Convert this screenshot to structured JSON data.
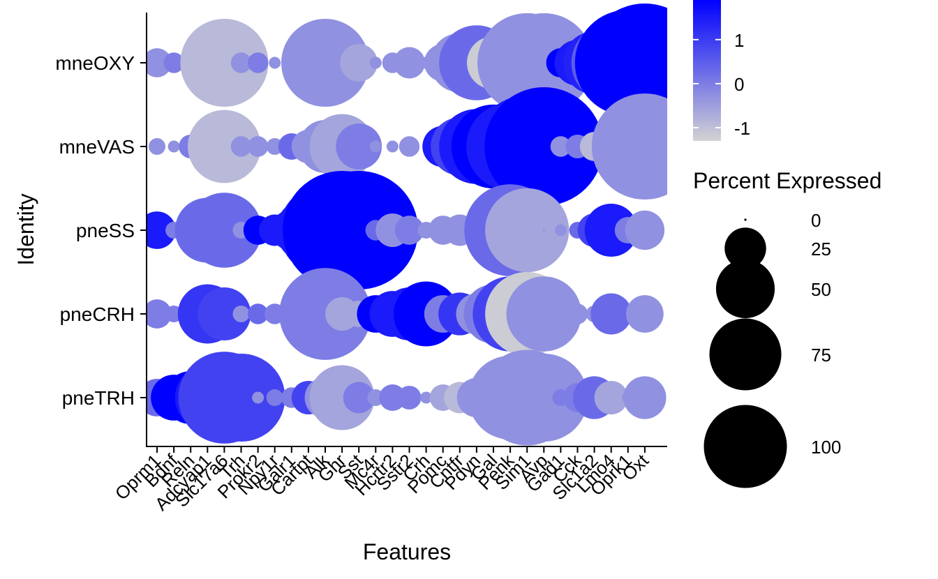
{
  "chart_data": {
    "type": "dotplot",
    "xlabel": "Features",
    "ylabel": "Identity",
    "features": [
      "Oprm1",
      "Bdnf",
      "Reln",
      "Adcyap1",
      "Slc17a6",
      "Trh",
      "Prokr2",
      "Npy1r",
      "Galr1",
      "Cartpt",
      "Alk",
      "Ghr",
      "Sst",
      "Mc4r",
      "Hcrtr2",
      "Sstr2",
      "Crh",
      "Pomc",
      "Cntfr",
      "Pdyn",
      "Gal",
      "Penk",
      "Sim1",
      "Avp",
      "Gad1",
      "Cck",
      "Slc1a2",
      "Lmo4",
      "Oprk1",
      "Oxt"
    ],
    "identities": [
      "mneOXY",
      "mneVAS",
      "pneSS",
      "pneCRH",
      "pneTRH"
    ],
    "color_legend": {
      "title": "",
      "min_color": "#d3d3d3",
      "max_color": "#0000ff",
      "range": [
        -1.3,
        1.9
      ],
      "ticks": [
        -1,
        0,
        1
      ]
    },
    "size_legend": {
      "title": "Percent Expressed",
      "values": [
        0,
        25,
        50,
        75,
        100
      ]
    },
    "grid": false,
    "rows": {
      "mneOXY": {
        "pct": [
          6,
          3,
          2,
          0,
          55,
          3,
          3,
          1,
          1,
          2,
          55,
          0,
          10,
          1,
          3,
          7,
          1,
          10,
          25,
          40,
          20,
          15,
          70,
          70,
          6,
          15,
          28,
          45,
          80,
          100
        ],
        "avg": [
          -0.3,
          0,
          0,
          -0.9,
          -0.9,
          -0.3,
          0,
          -0.3,
          -0.3,
          -0.3,
          -0.3,
          0,
          -0.6,
          -0.3,
          -0.3,
          -0.3,
          -0.3,
          -0.3,
          -0.3,
          0.3,
          -1.2,
          -0.3,
          -0.3,
          -0.3,
          1.9,
          1.5,
          1.4,
          0.5,
          1.9,
          1.9
        ]
      },
      "mneVAS": {
        "pct": [
          2,
          1,
          4,
          0,
          38,
          3,
          3,
          2,
          5,
          8,
          20,
          30,
          15,
          1,
          1,
          3,
          0,
          12,
          24,
          40,
          50,
          55,
          75,
          100,
          3,
          4,
          6,
          6,
          10,
          80
        ],
        "avg": [
          -0.3,
          -0.3,
          0,
          -0.9,
          -0.9,
          -0.3,
          -0.3,
          -0.3,
          0.3,
          -0.3,
          -0.3,
          -0.6,
          0,
          -0.3,
          -0.3,
          -0.3,
          -0.3,
          1.5,
          0.9,
          1.5,
          1.9,
          1.5,
          1.5,
          1.9,
          -0.3,
          0,
          -0.9,
          -0.9,
          -0.9,
          -0.3
        ]
      },
      "pneSS": {
        "pct": [
          10,
          2,
          1,
          30,
          40,
          2,
          6,
          7,
          12,
          30,
          60,
          100,
          100,
          3,
          8,
          6,
          2,
          6,
          7,
          8,
          20,
          60,
          50,
          0,
          1,
          2,
          8,
          20,
          5,
          11
        ],
        "avg": [
          1.5,
          0,
          0,
          0.3,
          0.3,
          -0.3,
          1.9,
          1.5,
          1.5,
          1.5,
          1.5,
          1.9,
          1.9,
          0.3,
          -0.3,
          0,
          -0.3,
          -0.3,
          -0.3,
          -0.3,
          -0.3,
          0.3,
          -0.6,
          -0.3,
          -0.3,
          0.3,
          0.9,
          1.5,
          0,
          -0.3
        ]
      },
      "pneCRH": {
        "pct": [
          6,
          2,
          5,
          25,
          20,
          2,
          3,
          3,
          2,
          5,
          60,
          8,
          5,
          10,
          15,
          20,
          30,
          10,
          13,
          12,
          25,
          40,
          50,
          40,
          1,
          3,
          2,
          12,
          2,
          10
        ],
        "avg": [
          0,
          0,
          0,
          1.1,
          0.9,
          -0.3,
          0.3,
          0,
          -0.3,
          -0.3,
          0,
          -0.6,
          -0.6,
          1.9,
          1.5,
          1.5,
          1.9,
          0,
          1.1,
          -0.3,
          0,
          0.9,
          -1.2,
          -0.3,
          -0.3,
          -0.3,
          -0.3,
          0.3,
          0.3,
          -0.3
        ]
      },
      "pneTRH": {
        "pct": [
          10,
          15,
          20,
          30,
          60,
          55,
          1,
          2,
          3,
          8,
          12,
          30,
          7,
          2,
          5,
          4,
          1,
          5,
          7,
          11,
          20,
          50,
          65,
          55,
          2,
          6,
          13,
          8,
          1,
          13
        ],
        "avg": [
          0.3,
          1.9,
          1.9,
          1.5,
          0.9,
          0.9,
          -0.3,
          0,
          0,
          0.9,
          -0.3,
          -0.6,
          0,
          -0.3,
          0,
          0,
          -0.3,
          -0.6,
          -0.9,
          -0.3,
          -0.3,
          -0.3,
          -0.3,
          -0.3,
          0,
          0,
          0.3,
          -0.6,
          -0.3,
          -0.3
        ]
      }
    }
  }
}
